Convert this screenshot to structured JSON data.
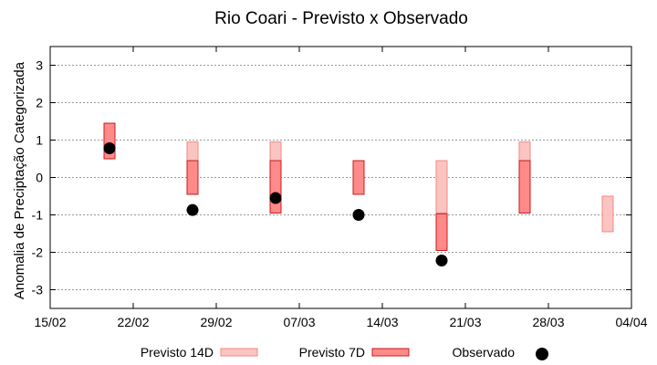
{
  "chart_data": {
    "type": "scatter",
    "title": "Rio Coari - Previsto x Observado",
    "xlabel": "",
    "ylabel": "Anomalia de Preciptação Categorizada",
    "x_tick_labels": [
      "15/02",
      "22/02",
      "29/02",
      "07/03",
      "14/03",
      "21/03",
      "28/03",
      "04/04"
    ],
    "x_tick_days": [
      0,
      7,
      14,
      21,
      28,
      35,
      42,
      49
    ],
    "xlim_days": [
      0,
      49
    ],
    "ylim": [
      -3.5,
      3.5
    ],
    "y_ticks": [
      -3,
      -2,
      -1,
      0,
      1,
      2,
      3
    ],
    "grid": true,
    "legend_position": "bottom",
    "series": [
      {
        "name": "Previsto 14D",
        "kind": "range-bar",
        "color_fill": "#fbc4c0",
        "color_edge": "#f08a85",
        "points": [
          {
            "x_day": 12,
            "low": -0.45,
            "high": 0.95
          },
          {
            "x_day": 19,
            "low": -0.95,
            "high": 0.95
          },
          {
            "x_day": 33,
            "low": -0.95,
            "high": 0.45
          },
          {
            "x_day": 40,
            "low": -0.95,
            "high": 0.95
          },
          {
            "x_day": 47,
            "low": -1.45,
            "high": -0.5
          }
        ]
      },
      {
        "name": "Previsto 7D",
        "kind": "range-bar",
        "color_fill": "#ff8a8a",
        "color_edge": "#cc1a1a",
        "points": [
          {
            "x_day": 5,
            "low": 0.5,
            "high": 1.45
          },
          {
            "x_day": 12,
            "low": -0.45,
            "high": 0.45
          },
          {
            "x_day": 19,
            "low": -0.95,
            "high": 0.45
          },
          {
            "x_day": 26,
            "low": -0.45,
            "high": 0.45
          },
          {
            "x_day": 33,
            "low": -1.95,
            "high": -0.97
          },
          {
            "x_day": 40,
            "low": -0.95,
            "high": 0.45
          }
        ]
      },
      {
        "name": "Observado",
        "kind": "point",
        "color": "#000000",
        "points": [
          {
            "x_day": 5,
            "y": 0.78
          },
          {
            "x_day": 12,
            "y": -0.87
          },
          {
            "x_day": 19,
            "y": -0.55
          },
          {
            "x_day": 26,
            "y": -1.0
          },
          {
            "x_day": 33,
            "y": -2.22
          }
        ]
      }
    ]
  }
}
